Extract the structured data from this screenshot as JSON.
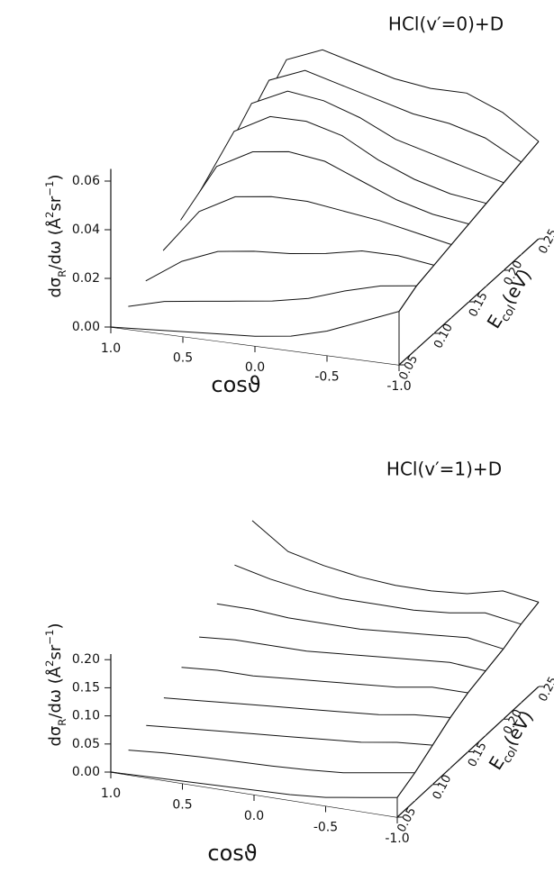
{
  "chart_data": [
    {
      "type": "surface3d",
      "title": "HCl(v′=0)+D",
      "x_label": "cosϑ",
      "y_label": [
        "dσ",
        "R",
        "/dω  (Å",
        "2",
        "sr",
        "−1",
        ")"
      ],
      "z_label": [
        "E",
        "col",
        "(eV)"
      ],
      "x": [
        1,
        0.75,
        0.5,
        0.25,
        0,
        -0.25,
        -0.5,
        -0.75,
        -1
      ],
      "energies": [
        0.05,
        0.075,
        0.1,
        0.125,
        0.15,
        0.175,
        0.2,
        0.225,
        0.25
      ],
      "values": [
        [
          0.0,
          0.001,
          0.002,
          0.003,
          0.004,
          0.006,
          0.01,
          0.016,
          0.022
        ],
        [
          0.002,
          0.006,
          0.008,
          0.01,
          0.012,
          0.015,
          0.02,
          0.024,
          0.026
        ],
        [
          0.006,
          0.016,
          0.022,
          0.024,
          0.025,
          0.027,
          0.03,
          0.03,
          0.028
        ],
        [
          0.012,
          0.03,
          0.038,
          0.04,
          0.04,
          0.038,
          0.036,
          0.033,
          0.03
        ],
        [
          0.018,
          0.042,
          0.05,
          0.052,
          0.05,
          0.044,
          0.038,
          0.034,
          0.032
        ],
        [
          0.022,
          0.05,
          0.058,
          0.058,
          0.054,
          0.046,
          0.04,
          0.036,
          0.034
        ],
        [
          0.025,
          0.055,
          0.062,
          0.06,
          0.055,
          0.048,
          0.044,
          0.04,
          0.036
        ],
        [
          0.028,
          0.058,
          0.064,
          0.06,
          0.056,
          0.052,
          0.05,
          0.046,
          0.038
        ],
        [
          0.03,
          0.06,
          0.066,
          0.062,
          0.058,
          0.056,
          0.056,
          0.05,
          0.04
        ]
      ],
      "xlim": [
        1,
        -1
      ],
      "elim": [
        0.05,
        0.25
      ],
      "ylim": [
        0,
        0.065
      ],
      "xticks": [
        {
          "value": 1,
          "label": "1.0"
        },
        0.5,
        {
          "value": 0,
          "label": "0.0"
        },
        -0.5,
        {
          "value": -1,
          "label": "-1.0"
        }
      ],
      "eticks": [
        0.05,
        {
          "value": 0.1,
          "label": "0.10"
        },
        0.15,
        {
          "value": 0.2,
          "label": "0.20"
        },
        0.25
      ],
      "yticks": [
        {
          "value": 0,
          "label": "0.00"
        },
        0.02,
        0.04,
        0.06
      ],
      "color": "#111111"
    },
    {
      "type": "surface3d",
      "title": "HCl(v′=1)+D",
      "x_label": "cosϑ",
      "y_label": [
        "dσ",
        "R",
        "/dω  (Å",
        "2",
        "sr",
        "−1",
        ")"
      ],
      "z_label": [
        "E",
        "col",
        "(eV)"
      ],
      "x": [
        1,
        0.75,
        0.5,
        0.25,
        0,
        -0.25,
        -0.5,
        -0.75,
        -1
      ],
      "energies": [
        0.05,
        0.075,
        0.1,
        0.125,
        0.15,
        0.175,
        0.2,
        0.225,
        0.25
      ],
      "values": [
        [
          0.0,
          0.002,
          0.004,
          0.006,
          0.008,
          0.01,
          0.015,
          0.025,
          0.035
        ],
        [
          0.01,
          0.015,
          0.018,
          0.02,
          0.022,
          0.025,
          0.03,
          0.04,
          0.05
        ],
        [
          0.025,
          0.03,
          0.035,
          0.04,
          0.045,
          0.05,
          0.055,
          0.065,
          0.07
        ],
        [
          0.045,
          0.05,
          0.055,
          0.06,
          0.065,
          0.07,
          0.075,
          0.085,
          0.09
        ],
        [
          0.07,
          0.075,
          0.075,
          0.08,
          0.085,
          0.09,
          0.095,
          0.105,
          0.105
        ],
        [
          0.095,
          0.1,
          0.1,
          0.1,
          0.105,
          0.11,
          0.115,
          0.12,
          0.115
        ],
        [
          0.125,
          0.125,
          0.12,
          0.12,
          0.12,
          0.125,
          0.13,
          0.135,
          0.125
        ],
        [
          0.165,
          0.15,
          0.14,
          0.135,
          0.135,
          0.135,
          0.14,
          0.15,
          0.14
        ],
        [
          0.215,
          0.17,
          0.155,
          0.145,
          0.14,
          0.14,
          0.145,
          0.16,
          0.15
        ]
      ],
      "xlim": [
        1,
        -1
      ],
      "elim": [
        0.05,
        0.25
      ],
      "ylim": [
        0,
        0.21
      ],
      "xticks": [
        {
          "value": 1,
          "label": "1.0"
        },
        0.5,
        {
          "value": 0,
          "label": "0.0"
        },
        -0.5,
        {
          "value": -1,
          "label": "-1.0"
        }
      ],
      "eticks": [
        0.05,
        {
          "value": 0.1,
          "label": "0.10"
        },
        0.15,
        {
          "value": 0.2,
          "label": "0.20"
        },
        0.25
      ],
      "yticks": [
        {
          "value": 0,
          "label": "0.00"
        },
        0.05,
        {
          "value": 0.1,
          "label": "0.10"
        },
        0.15,
        {
          "value": 0.2,
          "label": "0.20"
        }
      ],
      "color": "#111111"
    }
  ]
}
